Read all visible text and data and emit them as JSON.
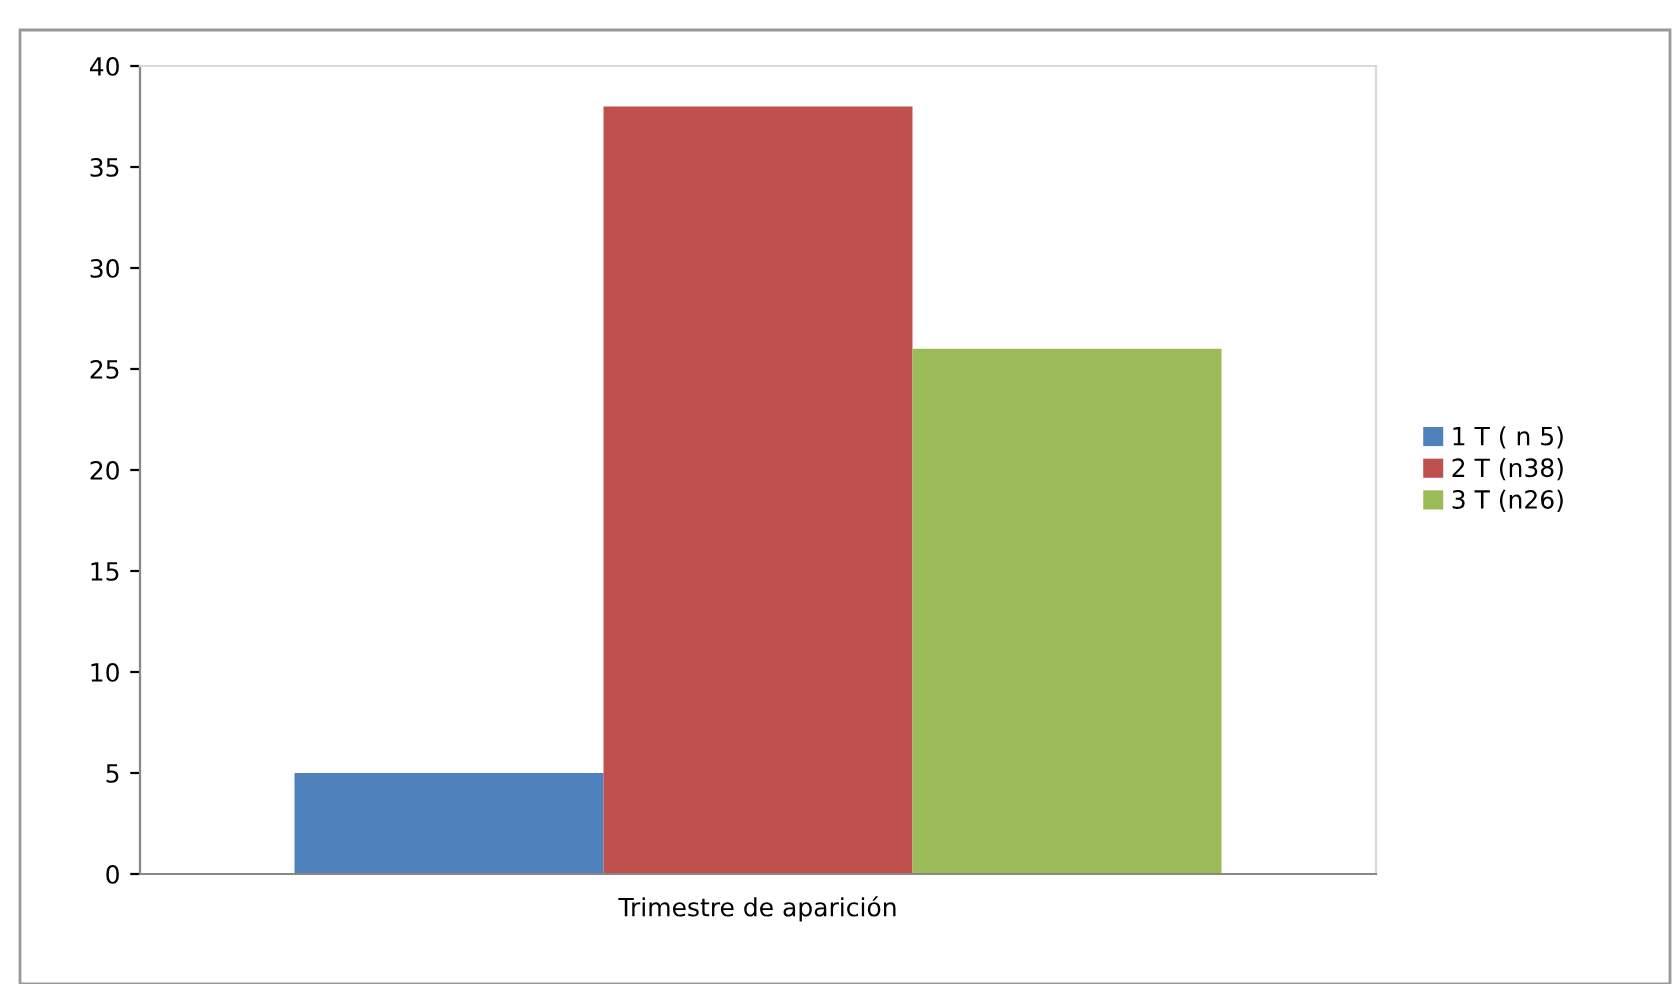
{
  "chart_data": {
    "type": "bar",
    "categories": [
      "Trimestre de aparición"
    ],
    "series": [
      {
        "name": "1 T ( n 5)",
        "color": "#4f81bd",
        "values": [
          5
        ]
      },
      {
        "name": "2 T (n38)",
        "color": "#c0504d",
        "values": [
          38
        ]
      },
      {
        "name": "3 T (n26)",
        "color": "#9bbb59",
        "values": [
          26
        ]
      }
    ],
    "ylim": [
      0,
      40
    ],
    "yticks": [
      0,
      5,
      10,
      15,
      20,
      25,
      30,
      35,
      40
    ],
    "grid": false,
    "legend": "right"
  }
}
